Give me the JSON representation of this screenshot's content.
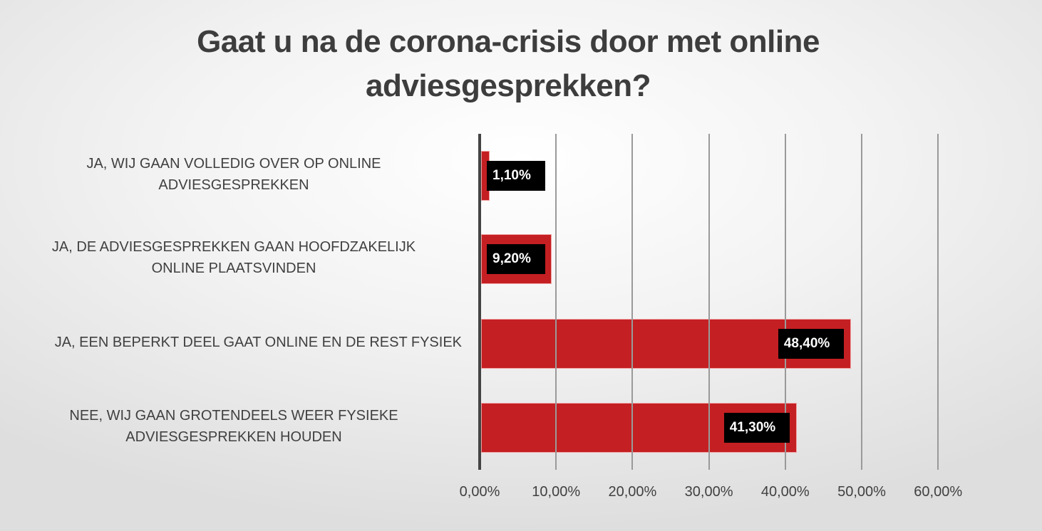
{
  "title": {
    "line1": "Gaat u na de corona-crisis door met online",
    "line2": "adviesgesprekken?"
  },
  "colors": {
    "bar": "#c41f22",
    "label_bg": "#000000",
    "gridline": "#9a9a9a",
    "axis": "#444444"
  },
  "categories": [
    {
      "line1": "JA, WIJ GAAN VOLLEDIG OVER OP ONLINE",
      "line2": "ADVIESGESPREKKEN",
      "value_label": "1,10%"
    },
    {
      "line1": "JA, DE ADVIESGESPREKKEN GAAN HOOFDZAKELIJK",
      "line2": "ONLINE PLAATSVINDEN",
      "value_label": "9,20%"
    },
    {
      "line1": "JA, EEN BEPERKT DEEL GAAT ONLINE EN DE REST FYSIEK",
      "line2": "",
      "value_label": "48,40%"
    },
    {
      "line1": "NEE, WIJ GAAN GROTENDEELS WEER FYSIEKE",
      "line2": "ADVIESGESPREKKEN HOUDEN",
      "value_label": "41,30%"
    }
  ],
  "x_axis": {
    "ticks": [
      "0,00%",
      "10,00%",
      "20,00%",
      "30,00%",
      "40,00%",
      "50,00%",
      "60,00%"
    ]
  },
  "chart_data": {
    "type": "bar",
    "orientation": "horizontal",
    "title": "Gaat u na de corona-crisis door met online adviesgesprekken?",
    "categories": [
      "JA, WIJ GAAN VOLLEDIG OVER OP ONLINE ADVIESGESPREKKEN",
      "JA, DE ADVIESGESPREKKEN GAAN HOOFDZAKELIJK ONLINE PLAATSVINDEN",
      "JA, EEN BEPERKT DEEL GAAT ONLINE EN DE REST FYSIEK",
      "NEE, WIJ GAAN GROTENDEELS WEER FYSIEKE ADVIESGESPREKKEN HOUDEN"
    ],
    "values": [
      1.1,
      9.2,
      48.4,
      41.3
    ],
    "value_labels": [
      "1,10%",
      "9,20%",
      "48,40%",
      "41,30%"
    ],
    "xlabel": "",
    "ylabel": "",
    "xlim": [
      0,
      60
    ],
    "x_tick_labels": [
      "0,00%",
      "10,00%",
      "20,00%",
      "30,00%",
      "40,00%",
      "50,00%",
      "60,00%"
    ],
    "grid": true,
    "legend": false,
    "series_color": "#c41f22"
  }
}
